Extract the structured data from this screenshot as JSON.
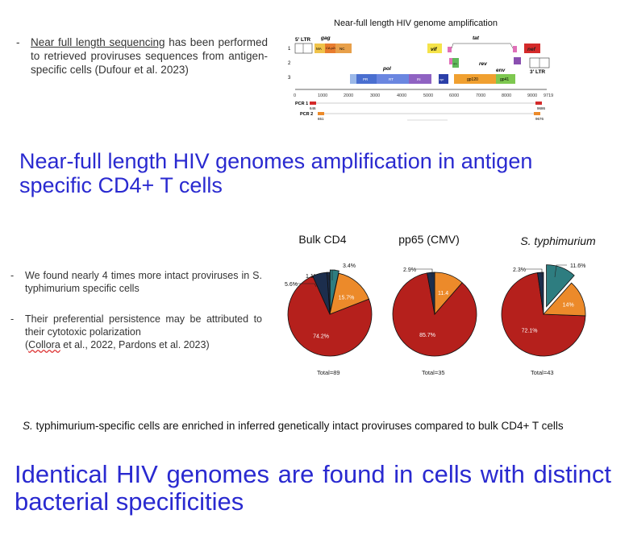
{
  "intro": {
    "bullet_dash": "-",
    "underlined": "Near full length sequencing",
    "rest": " has been performed to retrieved proviruses sequences from antigen-specific cells (Dufour et al. 2023)"
  },
  "genome": {
    "title": "Near-full length HIV genome amplification",
    "ltr5": "5' LTR",
    "ltr3": "3' LTR",
    "gag": "gag",
    "pol": "pol",
    "tat": "tat",
    "rev": "rev",
    "env": "env",
    "vif": "vif",
    "nef": "nef",
    "vpr": "vpr",
    "vpu": "vpu",
    "ma": "MA",
    "ca": "CA p24",
    "nc": "NC",
    "pr": "PR",
    "rt": "RT",
    "in": "IN",
    "gp120": "gp120",
    "gp41": "gp41",
    "frames": [
      "1",
      "2",
      "3"
    ],
    "ticks": [
      "0",
      "1000",
      "2000",
      "3000",
      "4000",
      "5000",
      "6000",
      "7000",
      "8000",
      "9000",
      "9719"
    ],
    "pcr1": "PCR 1",
    "pcr2": "PCR 2",
    "pcr1_start": "646",
    "pcr1_end": "9686",
    "pcr2_start": "651",
    "pcr2_end": "9676"
  },
  "heading1": "Near-full length HIV genomes amplification in antigen specific CD4+ T cells",
  "findings": {
    "b1": "We found nearly 4 times more intact proviruses in S. typhimurium specific cells",
    "b2_text": "Their preferential persistence may be attributed to their cytotoxic polarization",
    "b2_cite_a": "(",
    "b2_cite_collora": "Collora",
    "b2_cite_b": " et al., 2022, Pardons et al. 2023)"
  },
  "colors": {
    "red": "#b5201c",
    "orange": "#ec8a2a",
    "navy": "#1c2e4d",
    "teal": "#2e7d80",
    "heading": "#2a2ad0"
  },
  "chart_data": [
    {
      "type": "pie",
      "title": "Bulk CD4",
      "total": "Total=89",
      "slices": [
        {
          "label": "74.2%",
          "value": 74.2,
          "color": "#b5201c"
        },
        {
          "label": "15.7%",
          "value": 15.7,
          "color": "#ec8a2a"
        },
        {
          "label": "3.4%",
          "value": 3.4,
          "color": "#2e7d80"
        },
        {
          "label": "1.1%",
          "value": 1.1,
          "color": "#1c2e4d"
        },
        {
          "label": "5.6%",
          "value": 5.6,
          "color": "#1c2e4d"
        }
      ]
    },
    {
      "type": "pie",
      "title": "pp65 (CMV)",
      "total": "Total=35",
      "slices": [
        {
          "label": "85.7%",
          "value": 85.7,
          "color": "#b5201c"
        },
        {
          "label": "11.4",
          "value": 11.4,
          "color": "#ec8a2a"
        },
        {
          "label": "2.9%",
          "value": 2.9,
          "color": "#1c2e4d"
        }
      ]
    },
    {
      "type": "pie",
      "title": "S. typhimurium",
      "total": "Total=43",
      "slices": [
        {
          "label": "72.1%",
          "value": 72.1,
          "color": "#b5201c"
        },
        {
          "label": "14%",
          "value": 14,
          "color": "#ec8a2a"
        },
        {
          "label": "11.6%",
          "value": 11.6,
          "color": "#2e7d80"
        },
        {
          "label": "2.3%",
          "value": 2.3,
          "color": "#1c2e4d"
        }
      ]
    }
  ],
  "caption": {
    "italic": "S.",
    "rest": " typhimurium-specific cells are enriched in inferred genetically intact proviruses compared to bulk CD4+ T cells"
  },
  "heading2": "Identical HIV genomes are found in cells with distinct bacterial specificities"
}
